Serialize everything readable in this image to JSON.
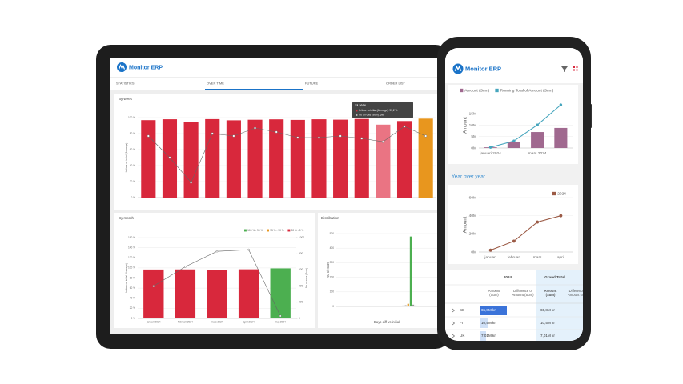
{
  "tablet": {
    "brand": "Monitor ERP",
    "tabs": [
      "STATISTICS",
      "OVER TIME",
      "FUTURE",
      "ORDER LIST"
    ],
    "active_tab": 1,
    "tooltip": {
      "title": "13 2024",
      "lines": [
        "In time vs initial (Average): 91,2 %",
        "No of rows (Sum): 698"
      ]
    }
  },
  "phone": {
    "brand": "Monitor ERP",
    "section": "Year over year",
    "table": {
      "groups": [
        "2024",
        "Grand Total"
      ],
      "columns": [
        "Amount (Sum)",
        "Difference of Amount (Sum)",
        "Amount (Sum)",
        "Difference of Amount (Sum)"
      ],
      "rows": [
        {
          "label": "SE",
          "amount": "65,8M kr",
          "total": "65,8M kr"
        },
        {
          "label": "FI",
          "amount": "10,5M kr",
          "total": "10,5M kr"
        },
        {
          "label": "UK",
          "amount": "7,01M kr",
          "total": "7,01M kr"
        }
      ]
    }
  },
  "chart_data": [
    {
      "type": "bar",
      "title": "By week",
      "ylabel": "In time vs initial (Average)",
      "grid": true,
      "categories": [
        null,
        null,
        null,
        null,
        null,
        null,
        null,
        null,
        null,
        null,
        null,
        null,
        null,
        null
      ],
      "series": [
        {
          "type": "bar",
          "color": "#d8283c",
          "colors": {
            "11": "#ea7483",
            "13": "#e8961e"
          },
          "values": [
            96.8,
            97.9,
            95.0,
            98.1,
            96.6,
            97.3,
            97.8,
            97.1,
            97.9,
            97.4,
            98.3,
            91.2,
            95.7,
            98.7
          ]
        },
        {
          "type": "line",
          "axis": "y2",
          "color": "#666666",
          "values": [
            770,
            500,
            190,
            800,
            770,
            870,
            820,
            750,
            750,
            770,
            740,
            698,
            890,
            770
          ]
        }
      ],
      "ylim": [
        0,
        100
      ],
      "yticks": [
        {
          "value": 0,
          "label": "0 %"
        },
        {
          "value": 20,
          "label": "20 %"
        },
        {
          "value": 40,
          "label": "40 %"
        },
        {
          "value": 60,
          "label": "60 %"
        },
        {
          "value": 80,
          "label": "80 %"
        },
        {
          "value": 100,
          "label": "100 %"
        }
      ],
      "y2lim": [
        0,
        1000
      ]
    },
    {
      "type": "bar",
      "title": "By month",
      "ylabel": "In time vs initial (Average)",
      "y2label": "No of rows (Sum)",
      "grid": true,
      "legend": [
        {
          "label": "100 % - 95 %",
          "color": "#4caf50"
        },
        {
          "label": "95 % - 90 %",
          "color": "#e8961e"
        },
        {
          "label": "90 % - 0 %",
          "color": "#d8283c"
        }
      ],
      "categories": [
        "januari 2024",
        "februari 2024",
        "mars 2024",
        "april 2024",
        "maj 2024"
      ],
      "series": [
        {
          "type": "bar",
          "color": "#d8283c",
          "colors": {
            "4": "#4caf50"
          },
          "values": [
            96.8,
            97.0,
            96.5,
            97.2,
            99.1
          ]
        },
        {
          "type": "line",
          "axis": "y2",
          "color": "#666666",
          "values": [
            400,
            640,
            830,
            850,
            30
          ]
        }
      ],
      "ylim": [
        0,
        160
      ],
      "yticks": [
        {
          "value": 0,
          "label": "0 %"
        },
        {
          "value": 20,
          "label": "20 %"
        },
        {
          "value": 40,
          "label": "40 %"
        },
        {
          "value": 60,
          "label": "60 %"
        },
        {
          "value": 80,
          "label": "80 %"
        },
        {
          "value": 100,
          "label": "100 %"
        },
        {
          "value": 120,
          "label": "120 %"
        },
        {
          "value": 140,
          "label": "140 %"
        },
        {
          "value": 160,
          "label": "160 %"
        }
      ],
      "y2lim": [
        0,
        1000
      ],
      "y2ticks": [
        0,
        200,
        400,
        600,
        800,
        1000
      ]
    },
    {
      "type": "bar",
      "title": "Distribution",
      "ylabel": "No of rows",
      "xlabel": "Days diff vs initial",
      "grid": true,
      "categories": [
        null,
        null,
        null,
        null,
        null,
        null,
        null,
        null,
        null,
        null,
        null,
        null,
        null,
        null,
        null,
        null,
        null,
        null,
        null,
        null,
        null,
        null,
        null,
        null,
        null,
        null,
        null,
        null,
        null,
        null,
        null,
        null,
        null,
        null,
        null,
        null,
        null,
        null,
        null,
        null
      ],
      "series": [
        {
          "type": "bar",
          "color": "#9a9a9a",
          "colors": {
            "28": "#e8961e",
            "29": "#4caf50"
          },
          "values": [
            2,
            1,
            1,
            3,
            2,
            1,
            2,
            2,
            3,
            2,
            1,
            2,
            3,
            2,
            2,
            3,
            2,
            1,
            2,
            3,
            2,
            4,
            3,
            2,
            5,
            4,
            6,
            8,
            18,
            480,
            12,
            6,
            4,
            3,
            2,
            2,
            1,
            2,
            1,
            1
          ]
        }
      ],
      "ylim": [
        0,
        500
      ],
      "yticks": [
        0,
        100,
        200,
        300,
        400,
        500
      ]
    },
    {
      "type": "bar",
      "ylabel": "Amount",
      "grid": true,
      "categories": [
        "januari 2024",
        null,
        "mars 2024",
        null
      ],
      "series": [
        {
          "type": "bar",
          "name": "Amount (Sum)",
          "color": "#a0698f",
          "values": [
            0.3,
            2.8,
            7.0,
            8.8
          ]
        },
        {
          "type": "line",
          "name": "Running Total of Amount (Sum)",
          "color": "#45a5bd",
          "values": [
            0.3,
            3.1,
            10.1,
            18.9
          ]
        }
      ],
      "ylim": [
        0,
        20
      ],
      "yticks": [
        {
          "value": 0,
          "label": "0M"
        },
        {
          "value": 5,
          "label": "5M"
        },
        {
          "value": 10,
          "label": "10M"
        },
        {
          "value": 15,
          "label": "15M"
        }
      ]
    },
    {
      "type": "line",
      "ylabel": "Amount",
      "grid": true,
      "categories": [
        "januari",
        "februari",
        "mars",
        "april"
      ],
      "series": [
        {
          "type": "line",
          "name": "2024",
          "color": "#9b5a45",
          "values": [
            2,
            12,
            33,
            40
          ]
        }
      ],
      "ylim": [
        0,
        60
      ],
      "yticks": [
        {
          "value": 0,
          "label": "0M"
        },
        {
          "value": 20,
          "label": "20M"
        },
        {
          "value": 40,
          "label": "40M"
        },
        {
          "value": 60,
          "label": "60M"
        }
      ]
    }
  ]
}
